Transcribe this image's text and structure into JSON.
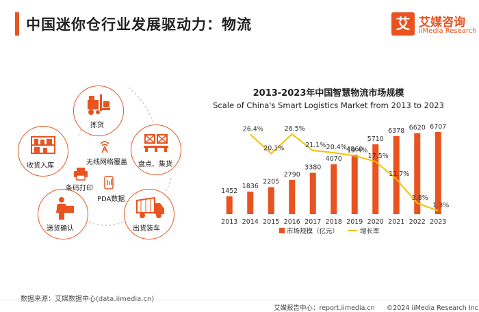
{
  "header": {
    "title": "中国迷你仓行业发展驱动力：物流"
  },
  "logo": {
    "mark": "艾",
    "name_cn": "艾媒咨询",
    "name_en": "iiMedia Research"
  },
  "diagram": {
    "nodes": [
      {
        "label": "拣货",
        "icon": "forklift-icon"
      },
      {
        "label": "收货入库",
        "icon": "warehouse-shelf-icon"
      },
      {
        "label": "盘点、集货",
        "icon": "pallet-icon"
      },
      {
        "label": "送货确认",
        "icon": "delivery-person-icon"
      },
      {
        "label": "出货装车",
        "icon": "truck-icon"
      }
    ],
    "center_items": [
      {
        "label": "无线网络覆盖",
        "icon": "wireless-icon"
      },
      {
        "label": "条码打印",
        "icon": "printer-icon"
      },
      {
        "label": "PDA数据",
        "icon": "pda-icon"
      }
    ]
  },
  "chart_title": "2013-2023年中国智慧物流市场规模",
  "chart_subtitle": "Scale of China's Smart Logistics Market from 2013 to 2023",
  "chart_data": {
    "type": "bar",
    "categories": [
      "2013",
      "2014",
      "2015",
      "2016",
      "2017",
      "2018",
      "2019",
      "2020",
      "2021",
      "2022",
      "2023"
    ],
    "series": [
      {
        "name": "市场规模（亿元）",
        "type": "bar",
        "values": [
          1452,
          1836,
          2205,
          2790,
          3380,
          4070,
          4860,
          5710,
          6378,
          6620,
          6707
        ]
      },
      {
        "name": "增长率",
        "type": "line",
        "values": [
          null,
          26.4,
          20.1,
          26.5,
          21.1,
          20.4,
          19.4,
          17.5,
          11.7,
          3.8,
          1.3
        ],
        "labels": [
          "",
          "26.4%",
          "20.1%",
          "26.5%",
          "21.1%",
          "20.4%",
          "19.4%",
          "17.5%",
          "11.7%",
          "3.8%",
          "1.3%"
        ]
      }
    ],
    "legend": "bottom",
    "colors": {
      "bar": "#e8531f",
      "line": "#f2c000"
    }
  },
  "source": "数据来源：艾媒数据中心(data.iimedia.cn)",
  "footer": {
    "center": "艾媒报告中心：report.iimedia.cn",
    "copyright": "©2024  iiMedia Research  Inc"
  }
}
